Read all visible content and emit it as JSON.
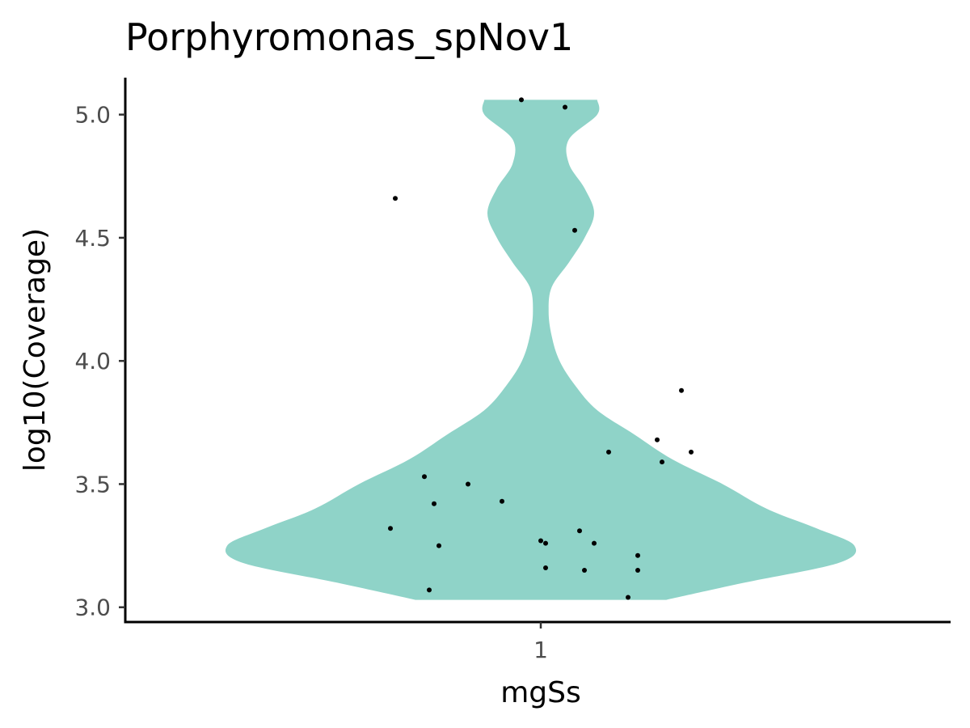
{
  "chart_data": {
    "type": "violin",
    "title": "Porphyromonas_spNov1",
    "xlabel": "mgSs",
    "ylabel": "log10(Coverage)",
    "categories": [
      "1"
    ],
    "ylim": [
      2.94,
      5.15
    ],
    "yticks": [
      3.0,
      3.5,
      4.0,
      4.5,
      5.0
    ],
    "ytick_labels": [
      "3.0",
      "3.5",
      "4.0",
      "4.5",
      "5.0"
    ],
    "grid": false,
    "legend": "none",
    "fill_color": "#8fd3c8",
    "point_color": "#000000",
    "violin": {
      "y_range": [
        3.03,
        5.06
      ],
      "density_profile": [
        {
          "y": 3.03,
          "half_width": 0.4
        },
        {
          "y": 3.1,
          "half_width": 0.65
        },
        {
          "y": 3.18,
          "half_width": 0.95
        },
        {
          "y": 3.25,
          "half_width": 1.0
        },
        {
          "y": 3.32,
          "half_width": 0.88
        },
        {
          "y": 3.4,
          "half_width": 0.72
        },
        {
          "y": 3.5,
          "half_width": 0.58
        },
        {
          "y": 3.6,
          "half_width": 0.42
        },
        {
          "y": 3.7,
          "half_width": 0.3
        },
        {
          "y": 3.8,
          "half_width": 0.18
        },
        {
          "y": 3.9,
          "half_width": 0.11
        },
        {
          "y": 4.0,
          "half_width": 0.06
        },
        {
          "y": 4.1,
          "half_width": 0.035
        },
        {
          "y": 4.2,
          "half_width": 0.025
        },
        {
          "y": 4.3,
          "half_width": 0.035
        },
        {
          "y": 4.4,
          "half_width": 0.09
        },
        {
          "y": 4.5,
          "half_width": 0.14
        },
        {
          "y": 4.6,
          "half_width": 0.17
        },
        {
          "y": 4.7,
          "half_width": 0.14
        },
        {
          "y": 4.8,
          "half_width": 0.09
        },
        {
          "y": 4.9,
          "half_width": 0.09
        },
        {
          "y": 5.0,
          "half_width": 0.18
        },
        {
          "y": 5.06,
          "half_width": 0.18
        }
      ]
    },
    "points": [
      {
        "x": 0.96,
        "y": 5.06
      },
      {
        "x": 1.05,
        "y": 5.03
      },
      {
        "x": 0.7,
        "y": 4.66
      },
      {
        "x": 1.07,
        "y": 4.53
      },
      {
        "x": 1.29,
        "y": 3.88
      },
      {
        "x": 1.24,
        "y": 3.68
      },
      {
        "x": 1.14,
        "y": 3.63
      },
      {
        "x": 1.31,
        "y": 3.63
      },
      {
        "x": 1.25,
        "y": 3.59
      },
      {
        "x": 0.76,
        "y": 3.53
      },
      {
        "x": 0.85,
        "y": 3.5
      },
      {
        "x": 0.92,
        "y": 3.43
      },
      {
        "x": 0.78,
        "y": 3.42
      },
      {
        "x": 0.69,
        "y": 3.32
      },
      {
        "x": 1.08,
        "y": 3.31
      },
      {
        "x": 1.0,
        "y": 3.27
      },
      {
        "x": 1.01,
        "y": 3.26
      },
      {
        "x": 1.11,
        "y": 3.26
      },
      {
        "x": 0.79,
        "y": 3.25
      },
      {
        "x": 1.2,
        "y": 3.21
      },
      {
        "x": 1.01,
        "y": 3.16
      },
      {
        "x": 1.09,
        "y": 3.15
      },
      {
        "x": 1.2,
        "y": 3.15
      },
      {
        "x": 0.77,
        "y": 3.07
      },
      {
        "x": 1.18,
        "y": 3.04
      }
    ]
  }
}
